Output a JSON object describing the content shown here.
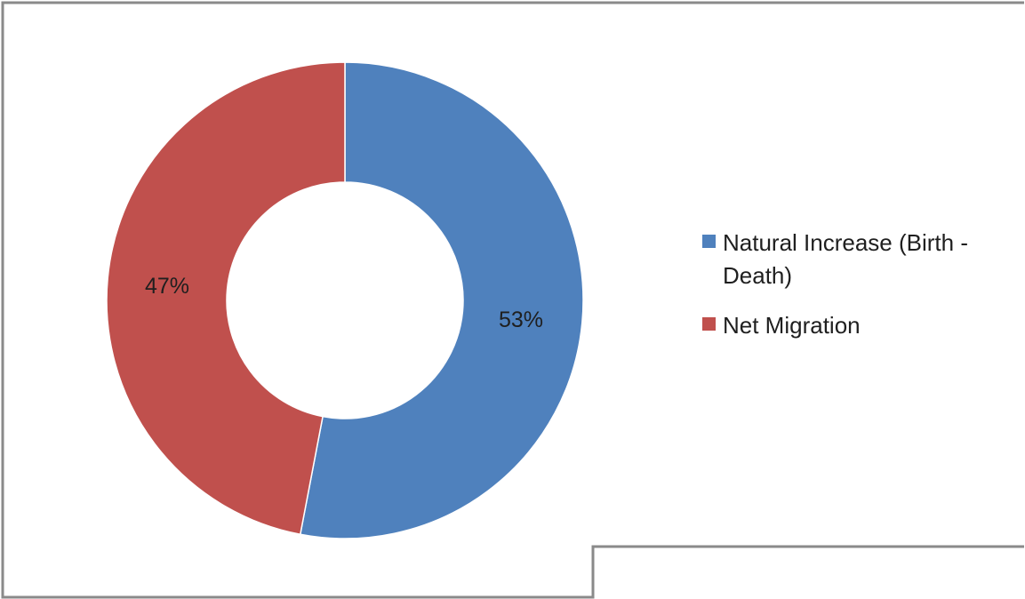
{
  "chart_data": {
    "type": "pie",
    "donut": true,
    "categories": [
      "Natural Increase (Birth - Death)",
      "Net Migration"
    ],
    "values": [
      53,
      47
    ],
    "value_labels": [
      "53%",
      "47%"
    ],
    "colors": [
      "#4F81BD",
      "#C0504D"
    ],
    "legend": {
      "placement": "right",
      "entries": [
        {
          "line1": "Natural Increase (Birth -",
          "line2": "Death)"
        },
        {
          "line1": "Net Migration",
          "line2": ""
        }
      ]
    },
    "title": "",
    "grid": false
  }
}
